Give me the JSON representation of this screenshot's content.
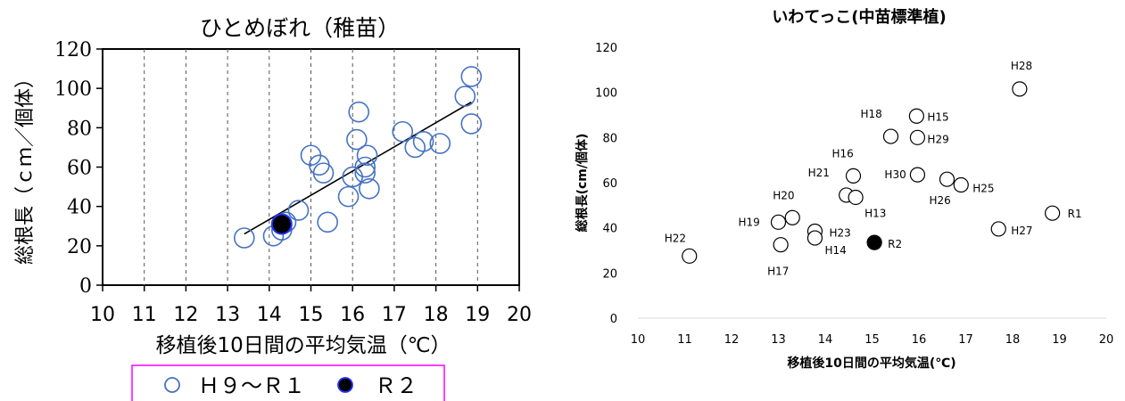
{
  "chart_data": [
    {
      "type": "scatter",
      "title": "ひとめぼれ（稚苗）",
      "xlabel": "移植後10日間の平均気温（℃）",
      "ylabel": "総根長（ｃｍ／個体）",
      "xlim": [
        10,
        20
      ],
      "ylim": [
        0,
        120
      ],
      "xticks": [
        "10",
        "11",
        "12",
        "13",
        "14",
        "15",
        "16",
        "17",
        "18",
        "19",
        "20"
      ],
      "yticks": [
        "0",
        "20",
        "40",
        "60",
        "80",
        "100",
        "120"
      ],
      "grid": "vertical dashed",
      "legend": {
        "placement": "bottom",
        "entries": [
          "Ｈ９～Ｒ１",
          "Ｒ２"
        ]
      },
      "series": [
        {
          "name": "Ｈ９～Ｒ１",
          "marker": "open-circle",
          "color": "#4472C4",
          "points": [
            [
              13.4,
              24
            ],
            [
              14.1,
              25
            ],
            [
              14.3,
              28
            ],
            [
              14.4,
              32
            ],
            [
              14.7,
              38
            ],
            [
              15.0,
              66
            ],
            [
              15.2,
              61
            ],
            [
              15.3,
              57
            ],
            [
              15.4,
              32
            ],
            [
              15.9,
              45
            ],
            [
              16.0,
              55
            ],
            [
              16.1,
              74
            ],
            [
              16.15,
              88
            ],
            [
              16.3,
              60
            ],
            [
              16.3,
              57
            ],
            [
              16.35,
              66
            ],
            [
              16.4,
              49
            ],
            [
              17.2,
              78
            ],
            [
              17.5,
              70
            ],
            [
              17.7,
              73
            ],
            [
              18.1,
              72
            ],
            [
              18.7,
              96
            ],
            [
              18.85,
              106
            ],
            [
              18.85,
              82
            ]
          ]
        },
        {
          "name": "Ｒ２",
          "marker": "filled-circle",
          "color": "#000000",
          "points": [
            [
              14.3,
              31
            ]
          ]
        }
      ],
      "trendline": {
        "x": [
          13.4,
          18.85
        ],
        "y": [
          26,
          93
        ]
      }
    },
    {
      "type": "scatter",
      "title": "いわてっこ(中苗標準植)",
      "xlabel": "移植後10日間の平均気温(℃)",
      "ylabel": "総根長(cm/個体)",
      "xlim": [
        10,
        20
      ],
      "ylim": [
        0,
        120
      ],
      "xticks": [
        "10",
        "11",
        "12",
        "13",
        "14",
        "15",
        "16",
        "17",
        "18",
        "19",
        "20"
      ],
      "yticks": [
        "0",
        "20",
        "40",
        "60",
        "80",
        "100",
        "120"
      ],
      "grid": "none",
      "series": [
        {
          "marker": "open-circle",
          "color": "#000000",
          "points": [
            {
              "label": "H28",
              "x": 18.15,
              "y": 101.5
            },
            {
              "label": "H18",
              "x": 15.4,
              "y": 80.5
            },
            {
              "label": "H15",
              "x": 15.95,
              "y": 89.5
            },
            {
              "label": "H29",
              "x": 15.97,
              "y": 80
            },
            {
              "label": "H16",
              "x": 14.6,
              "y": 63
            },
            {
              "label": "H30",
              "x": 15.97,
              "y": 63.5
            },
            {
              "label": "H21",
              "x": 14.45,
              "y": 54.5
            },
            {
              "label": "H13",
              "x": 14.65,
              "y": 53.5
            },
            {
              "label": "H26",
              "x": 16.6,
              "y": 61.5
            },
            {
              "label": "H25",
              "x": 16.9,
              "y": 59
            },
            {
              "label": "H20",
              "x": 13.3,
              "y": 44.5
            },
            {
              "label": "H19",
              "x": 13.0,
              "y": 42.5
            },
            {
              "label": "H23",
              "x": 13.78,
              "y": 38.5
            },
            {
              "label": "H14",
              "x": 13.78,
              "y": 35.5
            },
            {
              "label": "H17",
              "x": 13.05,
              "y": 32.5
            },
            {
              "label": "H27",
              "x": 17.7,
              "y": 39.5
            },
            {
              "label": "R1",
              "x": 18.85,
              "y": 46.5
            },
            {
              "label": "H22",
              "x": 11.1,
              "y": 27.5
            }
          ]
        },
        {
          "marker": "filled-circle",
          "color": "#000000",
          "points": [
            {
              "label": "R2",
              "x": 15.05,
              "y": 33.5
            }
          ]
        }
      ]
    }
  ]
}
